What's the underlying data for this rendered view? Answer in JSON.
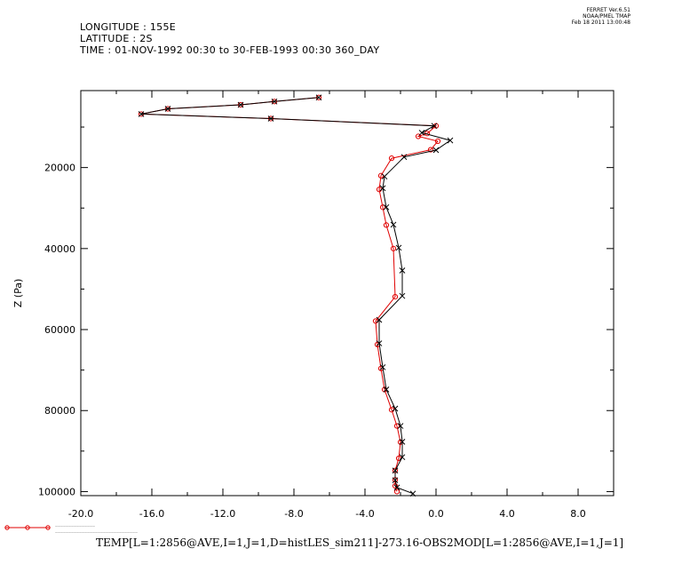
{
  "header": {
    "longitude": "LONGITUDE : 155E",
    "latitude": "LATITUDE : 2S",
    "time": "TIME : 01-NOV-1992 00:30 to 30-FEB-1993 00:30 360_DAY"
  },
  "stamp": {
    "line1": "FERRET  Ver.6.51",
    "line2": "NOAA/PMEL TMAP",
    "line3": "Feb 18 2011 13:00:48"
  },
  "caption": "TEMP[L=1:2856@AVE,I=1,J=1,D=histLES_sim211]-273.16-OBS2MOD[L=1:2856@AVE,I=1,J=1]",
  "legend": {
    "line1": "———————————————",
    "line2": "———————————————————————————————"
  },
  "colors": {
    "red": "#e00000",
    "black": "#000000"
  },
  "chart_data": {
    "type": "line",
    "ylabel": "Z (Pa)",
    "xlabel": "",
    "xlim": [
      -20,
      10
    ],
    "ylim": [
      101000,
      1000
    ],
    "y_inverted": true,
    "x_ticks": [
      -20,
      -16,
      -12,
      -8,
      -4,
      0,
      4,
      8
    ],
    "x_tick_labels": [
      "-20.0",
      "-16.0",
      "-12.0",
      "-8.0",
      "-4.0",
      "0.0",
      "4.0",
      "8.0"
    ],
    "y_ticks": [
      20000,
      40000,
      60000,
      80000,
      100000
    ],
    "y_tick_labels": [
      "20000",
      "40000",
      "60000",
      "80000",
      "100000"
    ],
    "series": [
      {
        "color": "#e00000",
        "marker": "circle",
        "points": [
          [
            -6.6,
            2700
          ],
          [
            -9.1,
            3700
          ],
          [
            -11.0,
            4500
          ],
          [
            -15.1,
            5500
          ],
          [
            -16.6,
            6800
          ],
          [
            -9.3,
            7900
          ],
          [
            0.0,
            9700
          ],
          [
            -0.5,
            11600
          ],
          [
            -1.0,
            12300
          ],
          [
            0.1,
            13500
          ],
          [
            -0.3,
            15600
          ],
          [
            -2.5,
            17700
          ],
          [
            -3.1,
            22000
          ],
          [
            -3.2,
            25400
          ],
          [
            -3.0,
            29800
          ],
          [
            -2.8,
            34200
          ],
          [
            -2.4,
            40000
          ],
          [
            -2.3,
            51900
          ],
          [
            -3.4,
            57900
          ],
          [
            -3.3,
            63700
          ],
          [
            -3.1,
            69600
          ],
          [
            -2.9,
            74800
          ],
          [
            -2.5,
            79800
          ],
          [
            -2.2,
            83800
          ],
          [
            -2.0,
            87800
          ],
          [
            -2.1,
            91800
          ],
          [
            -2.3,
            94800
          ],
          [
            -2.3,
            97100
          ],
          [
            -2.3,
            98600
          ],
          [
            -2.2,
            100000
          ]
        ]
      },
      {
        "color": "#000000",
        "marker": "x",
        "points": [
          [
            -6.6,
            2700
          ],
          [
            -9.1,
            3700
          ],
          [
            -11.0,
            4500
          ],
          [
            -15.1,
            5500
          ],
          [
            -16.6,
            6800
          ],
          [
            -9.3,
            7900
          ],
          [
            -0.1,
            9700
          ],
          [
            -0.8,
            11400
          ],
          [
            0.8,
            13300
          ],
          [
            0.0,
            15700
          ],
          [
            -1.8,
            17400
          ],
          [
            -2.9,
            22200
          ],
          [
            -3.0,
            25100
          ],
          [
            -2.8,
            29800
          ],
          [
            -2.4,
            34100
          ],
          [
            -2.1,
            39800
          ],
          [
            -1.9,
            45400
          ],
          [
            -1.9,
            51700
          ],
          [
            -3.2,
            57600
          ],
          [
            -3.2,
            63400
          ],
          [
            -3.0,
            69300
          ],
          [
            -2.8,
            74800
          ],
          [
            -2.3,
            79500
          ],
          [
            -2.0,
            83800
          ],
          [
            -1.9,
            87700
          ],
          [
            -1.9,
            91500
          ],
          [
            -2.3,
            94800
          ],
          [
            -2.3,
            97200
          ],
          [
            -2.2,
            99000
          ],
          [
            -1.3,
            100500
          ]
        ]
      }
    ]
  }
}
